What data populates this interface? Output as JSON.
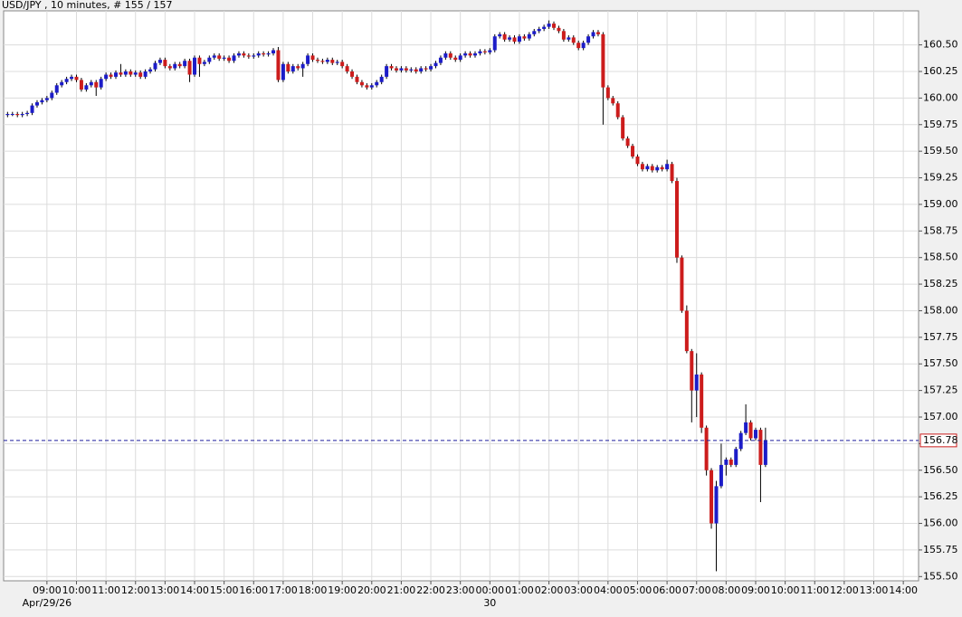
{
  "chart_data": {
    "type": "candlestick",
    "title": "USD/JPY , 10 minutes, # 155 / 157",
    "up_color": "#1c1cc8",
    "down_color": "#cc1c1c",
    "wick_color": "#000000",
    "grid": true,
    "price_line_color": "#1c1c9c",
    "last_price": 156.78,
    "last_price_box_color": "#cc1c1c",
    "x": [
      460,
      470,
      480,
      490,
      500,
      510,
      520,
      530,
      540,
      550,
      560,
      570,
      580,
      590,
      600,
      610,
      620,
      630,
      640,
      650,
      660,
      670,
      680,
      690,
      700,
      710,
      720,
      730,
      740,
      750,
      760,
      770,
      780,
      790,
      800,
      810,
      820,
      830,
      840,
      850,
      860,
      870,
      880,
      890,
      900,
      910,
      920,
      930,
      940,
      950,
      960,
      970,
      980,
      990,
      1000,
      1010,
      1020,
      1030,
      1040,
      1050,
      1060,
      1070,
      1080,
      1090,
      1100,
      1110,
      1120,
      1130,
      1140,
      1150,
      1160,
      1170,
      1180,
      1190,
      1200,
      1210,
      1220,
      1230,
      1240,
      1250,
      1260,
      1270,
      1280,
      1290,
      1300,
      1310,
      1320,
      1330,
      1340,
      1350,
      1360,
      1370,
      1380,
      1390,
      1400,
      1410,
      1420,
      1430,
      1440,
      1450,
      1460,
      1470,
      1480,
      1490,
      1500,
      1510,
      1520,
      1530,
      1540,
      1550,
      1560,
      1570,
      1580,
      1590,
      1600,
      1610,
      1620,
      1630,
      1640,
      1650,
      1660,
      1670,
      1680,
      1690,
      1700,
      1710,
      1720,
      1730,
      1740,
      1750,
      1760,
      1770,
      1780,
      1790,
      1800,
      1810,
      1820,
      1830,
      1840,
      1850,
      1860,
      1870,
      1880,
      1890,
      1900,
      1910,
      1920,
      1930,
      1940,
      1950,
      1960,
      1970,
      1980,
      1990,
      2000
    ],
    "ohlc": [
      [
        159.84,
        159.87,
        159.82,
        159.85
      ],
      [
        159.85,
        159.87,
        159.83,
        159.85
      ],
      [
        159.85,
        159.87,
        159.82,
        159.84
      ],
      [
        159.84,
        159.87,
        159.82,
        159.85
      ],
      [
        159.85,
        159.88,
        159.83,
        159.86
      ],
      [
        159.86,
        159.95,
        159.84,
        159.93
      ],
      [
        159.93,
        159.98,
        159.91,
        159.96
      ],
      [
        159.96,
        160.0,
        159.94,
        159.98
      ],
      [
        159.98,
        160.02,
        159.96,
        160.0
      ],
      [
        160.0,
        160.07,
        159.98,
        160.05
      ],
      [
        160.05,
        160.14,
        160.03,
        160.12
      ],
      [
        160.12,
        160.17,
        160.1,
        160.15
      ],
      [
        160.15,
        160.2,
        160.13,
        160.18
      ],
      [
        160.18,
        160.22,
        160.16,
        160.2
      ],
      [
        160.2,
        160.22,
        160.15,
        160.17
      ],
      [
        160.17,
        160.19,
        160.06,
        160.08
      ],
      [
        160.08,
        160.14,
        160.06,
        160.12
      ],
      [
        160.12,
        160.17,
        160.1,
        160.15
      ],
      [
        160.15,
        160.17,
        160.02,
        160.1
      ],
      [
        160.1,
        160.2,
        160.08,
        160.18
      ],
      [
        160.18,
        160.24,
        160.16,
        160.22
      ],
      [
        160.22,
        160.24,
        160.18,
        160.2
      ],
      [
        160.2,
        160.26,
        160.18,
        160.24
      ],
      [
        160.24,
        160.32,
        160.2,
        160.22
      ],
      [
        160.22,
        160.27,
        160.2,
        160.25
      ],
      [
        160.25,
        160.27,
        160.2,
        160.22
      ],
      [
        160.22,
        160.26,
        160.2,
        160.24
      ],
      [
        160.24,
        160.26,
        160.18,
        160.2
      ],
      [
        160.2,
        160.27,
        160.18,
        160.25
      ],
      [
        160.25,
        160.29,
        160.23,
        160.27
      ],
      [
        160.27,
        160.35,
        160.25,
        160.33
      ],
      [
        160.33,
        160.38,
        160.31,
        160.36
      ],
      [
        160.36,
        160.38,
        160.28,
        160.3
      ],
      [
        160.3,
        160.32,
        160.26,
        160.28
      ],
      [
        160.28,
        160.34,
        160.26,
        160.32
      ],
      [
        160.32,
        160.34,
        160.28,
        160.3
      ],
      [
        160.3,
        160.37,
        160.28,
        160.35
      ],
      [
        160.35,
        160.37,
        160.15,
        160.22
      ],
      [
        160.22,
        160.4,
        160.2,
        160.38
      ],
      [
        160.38,
        160.4,
        160.2,
        160.32
      ],
      [
        160.32,
        160.36,
        160.3,
        160.34
      ],
      [
        160.34,
        160.4,
        160.32,
        160.38
      ],
      [
        160.38,
        160.42,
        160.36,
        160.4
      ],
      [
        160.4,
        160.42,
        160.35,
        160.37
      ],
      [
        160.37,
        160.4,
        160.35,
        160.38
      ],
      [
        160.38,
        160.4,
        160.33,
        160.35
      ],
      [
        160.35,
        160.42,
        160.33,
        160.4
      ],
      [
        160.4,
        160.44,
        160.38,
        160.42
      ],
      [
        160.42,
        160.44,
        160.38,
        160.4
      ],
      [
        160.4,
        160.42,
        160.37,
        160.39
      ],
      [
        160.39,
        160.42,
        160.37,
        160.4
      ],
      [
        160.4,
        160.44,
        160.38,
        160.42
      ],
      [
        160.42,
        160.44,
        160.39,
        160.41
      ],
      [
        160.41,
        160.44,
        160.39,
        160.42
      ],
      [
        160.42,
        160.47,
        160.4,
        160.45
      ],
      [
        160.45,
        160.48,
        160.15,
        160.17
      ],
      [
        160.17,
        160.34,
        160.15,
        160.32
      ],
      [
        160.32,
        160.34,
        160.23,
        160.25
      ],
      [
        160.25,
        160.32,
        160.23,
        160.3
      ],
      [
        160.3,
        160.32,
        160.26,
        160.28
      ],
      [
        160.28,
        160.34,
        160.2,
        160.32
      ],
      [
        160.32,
        160.42,
        160.3,
        160.4
      ],
      [
        160.4,
        160.42,
        160.34,
        160.36
      ],
      [
        160.36,
        160.38,
        160.33,
        160.35
      ],
      [
        160.35,
        160.37,
        160.32,
        160.34
      ],
      [
        160.34,
        160.38,
        160.32,
        160.36
      ],
      [
        160.36,
        160.38,
        160.31,
        160.33
      ],
      [
        160.33,
        160.36,
        160.31,
        160.34
      ],
      [
        160.34,
        160.36,
        160.28,
        160.3
      ],
      [
        160.3,
        160.32,
        160.23,
        160.25
      ],
      [
        160.25,
        160.27,
        160.18,
        160.2
      ],
      [
        160.2,
        160.22,
        160.13,
        160.15
      ],
      [
        160.15,
        160.17,
        160.1,
        160.12
      ],
      [
        160.12,
        160.14,
        160.08,
        160.1
      ],
      [
        160.1,
        160.14,
        160.08,
        160.12
      ],
      [
        160.12,
        160.17,
        160.1,
        160.15
      ],
      [
        160.15,
        160.22,
        160.13,
        160.2
      ],
      [
        160.2,
        160.32,
        160.18,
        160.3
      ],
      [
        160.3,
        160.32,
        160.26,
        160.28
      ],
      [
        160.28,
        160.3,
        160.24,
        160.26
      ],
      [
        160.26,
        160.3,
        160.24,
        160.28
      ],
      [
        160.28,
        160.3,
        160.24,
        160.26
      ],
      [
        160.26,
        160.29,
        160.24,
        160.27
      ],
      [
        160.27,
        160.29,
        160.23,
        160.25
      ],
      [
        160.25,
        160.3,
        160.23,
        160.28
      ],
      [
        160.28,
        160.3,
        160.25,
        160.27
      ],
      [
        160.27,
        160.32,
        160.25,
        160.3
      ],
      [
        160.3,
        160.35,
        160.28,
        160.33
      ],
      [
        160.33,
        160.4,
        160.31,
        160.38
      ],
      [
        160.38,
        160.44,
        160.36,
        160.42
      ],
      [
        160.42,
        160.44,
        160.36,
        160.38
      ],
      [
        160.38,
        160.4,
        160.34,
        160.36
      ],
      [
        160.36,
        160.42,
        160.34,
        160.4
      ],
      [
        160.4,
        160.44,
        160.38,
        160.42
      ],
      [
        160.42,
        160.44,
        160.38,
        160.4
      ],
      [
        160.4,
        160.44,
        160.38,
        160.42
      ],
      [
        160.42,
        160.46,
        160.4,
        160.44
      ],
      [
        160.44,
        160.46,
        160.41,
        160.43
      ],
      [
        160.43,
        160.47,
        160.41,
        160.45
      ],
      [
        160.45,
        160.6,
        160.43,
        160.58
      ],
      [
        160.58,
        160.62,
        160.56,
        160.6
      ],
      [
        160.6,
        160.62,
        160.53,
        160.55
      ],
      [
        160.55,
        160.59,
        160.53,
        160.57
      ],
      [
        160.57,
        160.59,
        160.51,
        160.53
      ],
      [
        160.53,
        160.6,
        160.51,
        160.58
      ],
      [
        160.58,
        160.6,
        160.54,
        160.56
      ],
      [
        160.56,
        160.62,
        160.54,
        160.6
      ],
      [
        160.6,
        160.65,
        160.58,
        160.63
      ],
      [
        160.63,
        160.67,
        160.61,
        160.65
      ],
      [
        160.65,
        160.69,
        160.63,
        160.67
      ],
      [
        160.67,
        160.73,
        160.65,
        160.7
      ],
      [
        160.7,
        160.72,
        160.64,
        160.66
      ],
      [
        160.66,
        160.68,
        160.61,
        160.63
      ],
      [
        160.63,
        160.65,
        160.53,
        160.55
      ],
      [
        160.55,
        160.59,
        160.53,
        160.57
      ],
      [
        160.57,
        160.59,
        160.5,
        160.52
      ],
      [
        160.52,
        160.54,
        160.45,
        160.47
      ],
      [
        160.47,
        160.54,
        160.45,
        160.52
      ],
      [
        160.52,
        160.6,
        160.5,
        160.58
      ],
      [
        160.58,
        160.64,
        160.56,
        160.62
      ],
      [
        160.62,
        160.64,
        160.58,
        160.6
      ],
      [
        160.6,
        160.62,
        159.75,
        160.1
      ],
      [
        160.1,
        160.12,
        159.98,
        160.0
      ],
      [
        160.0,
        160.02,
        159.93,
        159.95
      ],
      [
        159.95,
        159.97,
        159.8,
        159.82
      ],
      [
        159.82,
        159.84,
        159.6,
        159.62
      ],
      [
        159.62,
        159.64,
        159.53,
        159.55
      ],
      [
        159.55,
        159.57,
        159.43,
        159.45
      ],
      [
        159.45,
        159.47,
        159.36,
        159.38
      ],
      [
        159.38,
        159.4,
        159.31,
        159.33
      ],
      [
        159.33,
        159.38,
        159.31,
        159.36
      ],
      [
        159.36,
        159.38,
        159.3,
        159.32
      ],
      [
        159.32,
        159.37,
        159.3,
        159.35
      ],
      [
        159.35,
        159.37,
        159.31,
        159.33
      ],
      [
        159.33,
        159.42,
        159.31,
        159.38
      ],
      [
        159.38,
        159.4,
        159.2,
        159.22
      ],
      [
        159.22,
        159.25,
        158.45,
        158.5
      ],
      [
        158.5,
        158.52,
        157.98,
        158.0
      ],
      [
        158.0,
        158.05,
        157.6,
        157.62
      ],
      [
        157.62,
        157.64,
        156.95,
        157.25
      ],
      [
        157.25,
        157.6,
        157.0,
        157.4
      ],
      [
        157.4,
        157.42,
        156.85,
        156.9
      ],
      [
        156.9,
        156.92,
        156.45,
        156.5
      ],
      [
        156.5,
        156.52,
        155.95,
        156.0
      ],
      [
        156.0,
        156.4,
        155.55,
        156.35
      ],
      [
        156.35,
        156.75,
        156.33,
        156.55
      ],
      [
        156.55,
        156.62,
        156.45,
        156.6
      ],
      [
        156.6,
        156.62,
        156.53,
        156.55
      ],
      [
        156.55,
        156.72,
        156.53,
        156.7
      ],
      [
        156.7,
        156.87,
        156.68,
        156.85
      ],
      [
        156.85,
        157.12,
        156.83,
        156.95
      ],
      [
        156.95,
        156.97,
        156.78,
        156.8
      ],
      [
        156.8,
        156.9,
        156.78,
        156.88
      ],
      [
        156.88,
        156.9,
        156.2,
        156.55
      ],
      [
        156.55,
        156.9,
        156.53,
        156.78
      ]
    ],
    "xlim": [
      452,
      2311
    ],
    "xticks": [
      {
        "value": 540,
        "label": "09:00"
      },
      {
        "value": 600,
        "label": "10:00"
      },
      {
        "value": 660,
        "label": "11:00"
      },
      {
        "value": 720,
        "label": "12:00"
      },
      {
        "value": 780,
        "label": "13:00"
      },
      {
        "value": 840,
        "label": "14:00"
      },
      {
        "value": 900,
        "label": "15:00"
      },
      {
        "value": 960,
        "label": "16:00"
      },
      {
        "value": 1020,
        "label": "17:00"
      },
      {
        "value": 1080,
        "label": "18:00"
      },
      {
        "value": 1140,
        "label": "19:00"
      },
      {
        "value": 1200,
        "label": "20:00"
      },
      {
        "value": 1260,
        "label": "21:00"
      },
      {
        "value": 1320,
        "label": "22:00"
      },
      {
        "value": 1380,
        "label": "23:00"
      },
      {
        "value": 1440,
        "label": "00:00"
      },
      {
        "value": 1500,
        "label": "01:00"
      },
      {
        "value": 1560,
        "label": "02:00"
      },
      {
        "value": 1620,
        "label": "03:00"
      },
      {
        "value": 1680,
        "label": "04:00"
      },
      {
        "value": 1740,
        "label": "05:00"
      },
      {
        "value": 1800,
        "label": "06:00"
      },
      {
        "value": 1860,
        "label": "07:00"
      },
      {
        "value": 1920,
        "label": "08:00"
      },
      {
        "value": 1980,
        "label": "09:00"
      },
      {
        "value": 2040,
        "label": "10:00"
      },
      {
        "value": 2100,
        "label": "11:00"
      },
      {
        "value": 2160,
        "label": "12:00"
      },
      {
        "value": 2220,
        "label": "13:00"
      },
      {
        "value": 2280,
        "label": "14:00"
      }
    ],
    "date_labels": [
      {
        "value": 540,
        "label": "Apr/29/26"
      },
      {
        "value": 1440,
        "label": "30"
      }
    ],
    "ylim": [
      155.46,
      160.82
    ],
    "yticks": [
      {
        "value": 155.5,
        "label": "155.50"
      },
      155.75,
      {
        "value": 156,
        "label": "156.00"
      },
      156.25,
      {
        "value": 156.5,
        "label": "156.50"
      },
      156.75,
      {
        "value": 157,
        "label": "157.00"
      },
      157.25,
      {
        "value": 157.5,
        "label": "157.50"
      },
      157.75,
      {
        "value": 158,
        "label": "158.00"
      },
      158.25,
      {
        "value": 158.5,
        "label": "158.50"
      },
      158.75,
      {
        "value": 159,
        "label": "159.00"
      },
      159.25,
      {
        "value": 159.5,
        "label": "159.50"
      },
      159.75,
      {
        "value": 160,
        "label": "160.00"
      },
      160.25,
      {
        "value": 160.5,
        "label": "160.50"
      }
    ]
  }
}
